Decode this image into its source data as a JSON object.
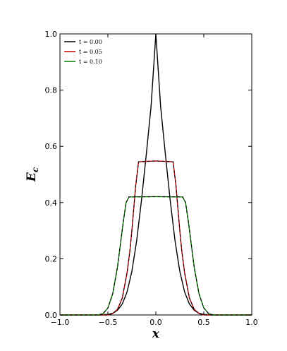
{
  "chart_data": {
    "type": "line",
    "title": "",
    "xlabel": "x",
    "ylabel": "E",
    "ylabel_subscript": "c",
    "xlim": [
      -1.0,
      1.0
    ],
    "ylim": [
      0.0,
      1.0
    ],
    "xticks": [
      -1.0,
      -0.5,
      0.0,
      0.5,
      1.0
    ],
    "xtick_labels": [
      "−1.0",
      "−0.5",
      "0.0",
      "0.5",
      "1.0"
    ],
    "yticks": [
      0.0,
      0.2,
      0.4,
      0.6,
      0.8,
      1.0
    ],
    "ytick_labels": [
      "0.0",
      "0.2",
      "0.4",
      "0.6",
      "0.8",
      "1.0"
    ],
    "grid": false,
    "legend_position": "top-left",
    "series": [
      {
        "name": "t = 0.00",
        "color": "#000000",
        "x": [
          -1.0,
          -0.6,
          -0.5,
          -0.45,
          -0.4,
          -0.35,
          -0.3,
          -0.25,
          -0.2,
          -0.15,
          -0.1,
          -0.05,
          0.0,
          0.05,
          0.1,
          0.15,
          0.2,
          0.25,
          0.3,
          0.35,
          0.4,
          0.45,
          0.5,
          0.6,
          1.0
        ],
        "y": [
          0.0,
          0.0,
          0.002,
          0.006,
          0.017,
          0.039,
          0.082,
          0.155,
          0.264,
          0.407,
          0.57,
          0.741,
          1.0,
          0.741,
          0.57,
          0.407,
          0.264,
          0.155,
          0.082,
          0.039,
          0.017,
          0.006,
          0.002,
          0.0,
          0.0
        ]
      },
      {
        "name": "t = 0.05",
        "color": "#cc0000",
        "x": [
          -1.0,
          -0.5,
          -0.45,
          -0.4,
          -0.35,
          -0.3,
          -0.27,
          -0.25,
          -0.23,
          -0.21,
          -0.18,
          0.0,
          0.18,
          0.21,
          0.23,
          0.25,
          0.27,
          0.3,
          0.35,
          0.4,
          0.45,
          0.5,
          1.0
        ],
        "y": [
          0.0,
          0.0,
          0.005,
          0.02,
          0.06,
          0.15,
          0.23,
          0.3,
          0.38,
          0.46,
          0.545,
          0.548,
          0.545,
          0.46,
          0.38,
          0.3,
          0.23,
          0.15,
          0.06,
          0.02,
          0.005,
          0.0,
          0.0
        ]
      },
      {
        "name": "t = 0.10",
        "color": "#008000",
        "x": [
          -1.0,
          -0.6,
          -0.55,
          -0.5,
          -0.45,
          -0.4,
          -0.37,
          -0.34,
          -0.31,
          -0.28,
          0.0,
          0.28,
          0.31,
          0.34,
          0.37,
          0.4,
          0.45,
          0.5,
          0.55,
          0.6,
          1.0
        ],
        "y": [
          0.0,
          0.0,
          0.005,
          0.025,
          0.075,
          0.17,
          0.25,
          0.33,
          0.4,
          0.42,
          0.421,
          0.42,
          0.4,
          0.33,
          0.25,
          0.17,
          0.075,
          0.025,
          0.005,
          0.0,
          0.0
        ]
      }
    ]
  }
}
